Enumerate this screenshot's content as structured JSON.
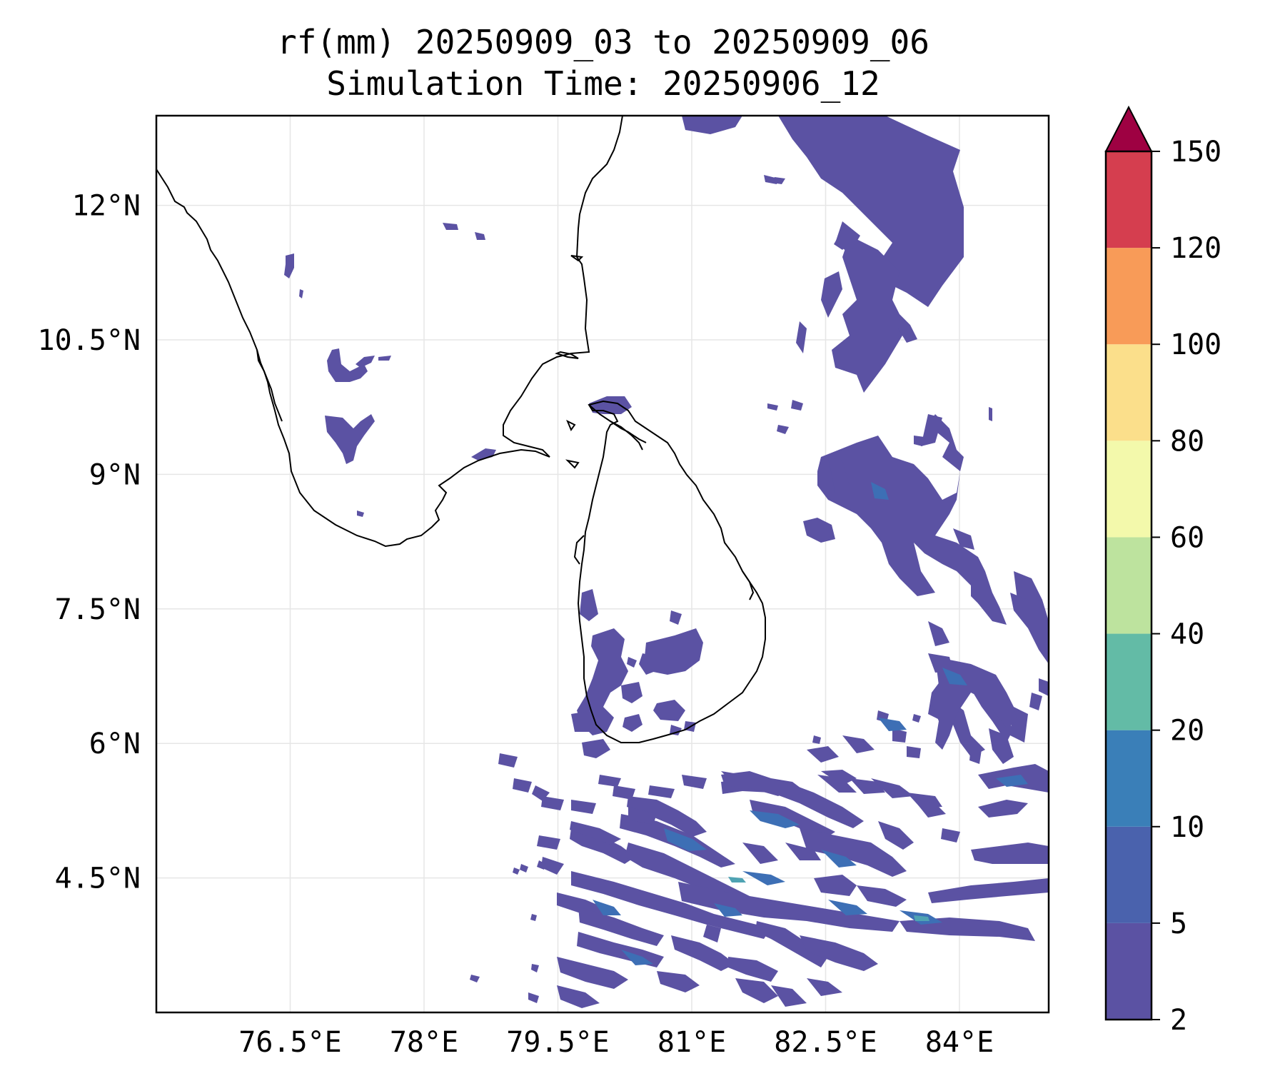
{
  "title": {
    "line1": "rf(mm) 20250909_03 to 20250909_06",
    "line2": "Simulation Time: 20250906_12"
  },
  "map": {
    "lon_range": [
      75.0,
      85.0
    ],
    "lat_range": [
      3.0,
      13.0
    ],
    "x_ticks": [
      {
        "value": 76.5,
        "label": "76.5°E"
      },
      {
        "value": 78.0,
        "label": "78°E"
      },
      {
        "value": 79.5,
        "label": "79.5°E"
      },
      {
        "value": 81.0,
        "label": "81°E"
      },
      {
        "value": 82.5,
        "label": "82.5°E"
      },
      {
        "value": 84.0,
        "label": "84°E"
      }
    ],
    "y_ticks": [
      {
        "value": 12.0,
        "label": "12°N"
      },
      {
        "value": 10.5,
        "label": "10.5°N"
      },
      {
        "value": 9.0,
        "label": "9°N"
      },
      {
        "value": 7.5,
        "label": "7.5°N"
      },
      {
        "value": 6.0,
        "label": "6°N"
      },
      {
        "value": 4.5,
        "label": "4.5°N"
      }
    ],
    "grid": true,
    "coastline_color": "#000000",
    "rain_color_low": "#5b52a3",
    "rain_color_mid": "#3d6fb5",
    "rain_color_high": "#4fa3b3"
  },
  "colorbar": {
    "levels": [
      {
        "value": 2,
        "label": "2",
        "color": "#5b52a3"
      },
      {
        "value": 5,
        "label": "5",
        "color": "#4a62ad"
      },
      {
        "value": 10,
        "label": "10",
        "color": "#3a7fb8"
      },
      {
        "value": 20,
        "label": "20",
        "color": "#63bba6"
      },
      {
        "value": 40,
        "label": "40",
        "color": "#bde39e"
      },
      {
        "value": 60,
        "label": "60",
        "color": "#f3f9ab"
      },
      {
        "value": 80,
        "label": "80",
        "color": "#fbdf8b"
      },
      {
        "value": 100,
        "label": "100",
        "color": "#f89b58"
      },
      {
        "value": 120,
        "label": "120",
        "color": "#d53e4f"
      },
      {
        "value": 150,
        "label": "150",
        "color": "#9e0142"
      }
    ],
    "extend": "max"
  }
}
